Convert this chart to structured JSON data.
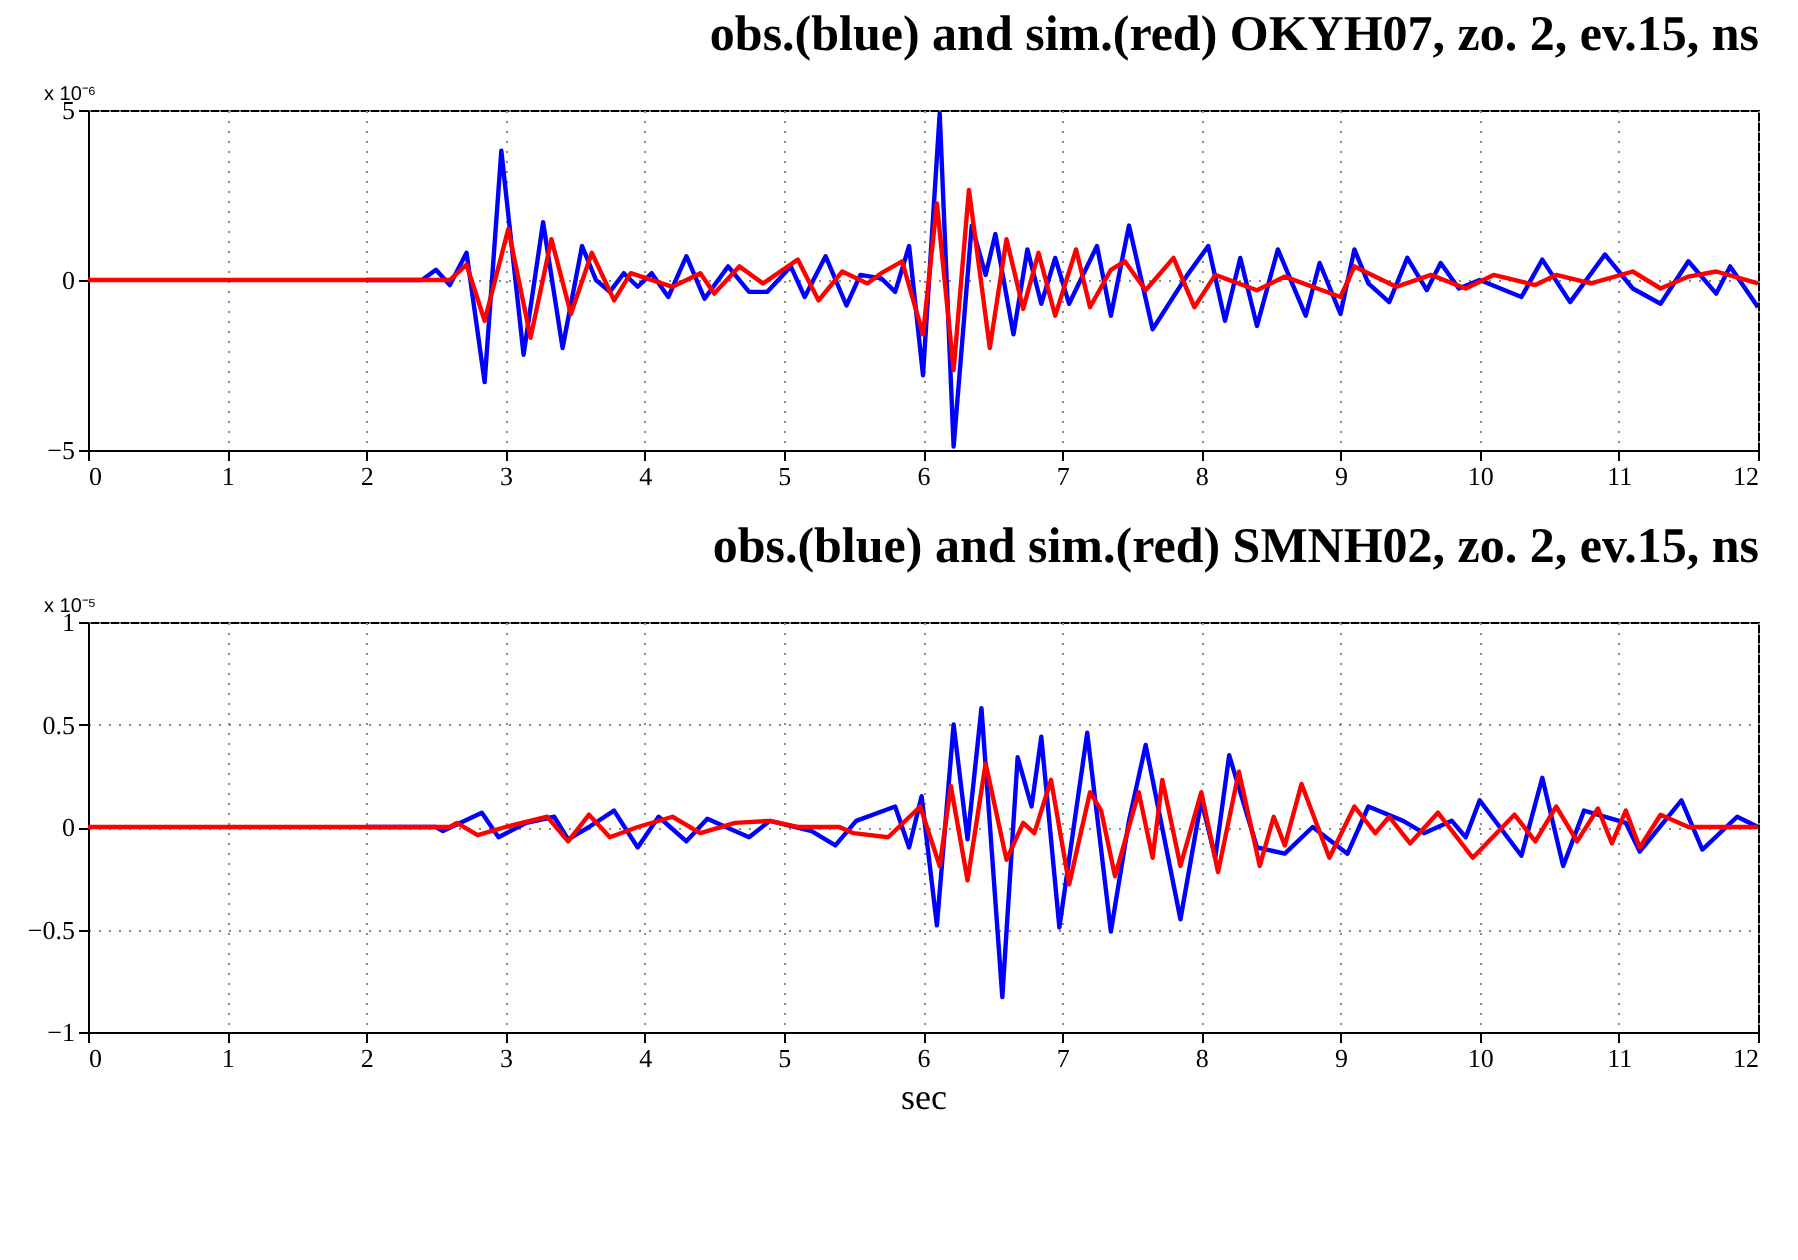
{
  "chart_data": [
    {
      "type": "line",
      "title": "obs.(blue) and sim.(red) OKYH07, zo. 2,  ev.15, ns",
      "annotations": [
        "x 10⁻⁶"
      ],
      "xlim": [
        0,
        12
      ],
      "xticks": [
        0,
        1,
        2,
        3,
        4,
        5,
        6,
        7,
        8,
        9,
        10,
        11,
        12
      ],
      "ylim": [
        -5,
        5
      ],
      "yticks": [
        -5,
        0,
        5
      ],
      "grid": true,
      "line_style": "solid",
      "series": [
        {
          "color": "#0000ff",
          "x": [
            2,
            2.4,
            2.5,
            2.6,
            2.72,
            2.85,
            2.97,
            3.13,
            3.27,
            3.41,
            3.55,
            3.65,
            3.75,
            3.85,
            3.95,
            4.05,
            4.17,
            4.3,
            4.43,
            4.6,
            4.75,
            4.88,
            5.05,
            5.15,
            5.3,
            5.45,
            5.55,
            5.7,
            5.8,
            5.9,
            6.0,
            6.12,
            6.22,
            6.35,
            6.45,
            6.52,
            6.65,
            6.75,
            6.85,
            6.95,
            7.05,
            7.25,
            7.35,
            7.48,
            7.65,
            7.9,
            8.05,
            8.17,
            8.28,
            8.4,
            8.55,
            8.75,
            8.85,
            9.0,
            9.1,
            9.2,
            9.35,
            9.48,
            9.62,
            9.72,
            9.85,
            10.0,
            10.3,
            10.45,
            10.65,
            10.9,
            11.1,
            11.3,
            11.5,
            11.7,
            11.8,
            12.0
          ],
          "values": [
            0,
            0,
            0.3,
            -0.15,
            0.8,
            -3.0,
            3.8,
            -2.2,
            1.7,
            -2.0,
            1.0,
            0,
            -0.35,
            0.2,
            -0.2,
            0.2,
            -0.5,
            0.7,
            -0.55,
            0.4,
            -0.35,
            -0.35,
            0.4,
            -0.5,
            0.7,
            -0.75,
            0.15,
            0.05,
            -0.35,
            1.0,
            -2.8,
            4.9,
            -4.9,
            1.6,
            0.15,
            1.35,
            -1.6,
            0.9,
            -0.7,
            0.65,
            -0.7,
            1.0,
            -1.05,
            1.6,
            -1.45,
            0.15,
            1.0,
            -1.2,
            0.65,
            -1.35,
            0.9,
            -1.05,
            0.5,
            -1.0,
            0.9,
            -0.1,
            -0.65,
            0.65,
            -0.3,
            0.5,
            -0.25,
            0,
            -0.5,
            0.6,
            -0.65,
            0.75,
            -0.25,
            -0.7,
            0.55,
            -0.4,
            0.4,
            -0.8
          ]
        },
        {
          "color": "#ff0000",
          "x": [
            0,
            1,
            2,
            2.6,
            2.72,
            2.85,
            3.02,
            3.18,
            3.33,
            3.47,
            3.62,
            3.78,
            3.9,
            4.2,
            4.4,
            4.5,
            4.68,
            4.85,
            5.1,
            5.25,
            5.42,
            5.6,
            5.7,
            5.85,
            6.0,
            6.1,
            6.22,
            6.33,
            6.48,
            6.6,
            6.72,
            6.83,
            6.95,
            7.1,
            7.2,
            7.35,
            7.45,
            7.6,
            7.8,
            7.95,
            8.1,
            8.4,
            8.6,
            9.0,
            9.1,
            9.4,
            9.65,
            9.9,
            10.1,
            10.4,
            10.55,
            10.8,
            11.1,
            11.3,
            11.5,
            11.7,
            12.0
          ],
          "values": [
            0,
            0,
            0,
            0,
            0.45,
            -1.2,
            1.5,
            -1.7,
            1.2,
            -1.0,
            0.8,
            -0.6,
            0.2,
            -0.2,
            0.2,
            -0.4,
            0.4,
            -0.1,
            0.6,
            -0.6,
            0.25,
            -0.1,
            0.2,
            0.55,
            -1.6,
            2.25,
            -2.65,
            2.65,
            -2.0,
            1.2,
            -0.85,
            0.8,
            -1.05,
            0.9,
            -0.8,
            0.3,
            0.55,
            -0.3,
            0.65,
            -0.8,
            0.15,
            -0.3,
            0.1,
            -0.5,
            0.4,
            -0.2,
            0.15,
            -0.25,
            0.15,
            -0.15,
            0.15,
            -0.1,
            0.25,
            -0.25,
            0.1,
            0.25,
            -0.1
          ]
        }
      ]
    },
    {
      "type": "line",
      "title": "obs.(blue) and sim.(red) SMNH02, zo. 2,  ev.15, ns",
      "xlabel": "sec",
      "annotations": [
        "x 10⁻⁵"
      ],
      "xlim": [
        0,
        12
      ],
      "xticks": [
        0,
        1,
        2,
        3,
        4,
        5,
        6,
        7,
        8,
        9,
        10,
        11,
        12
      ],
      "ylim": [
        -1,
        1
      ],
      "yticks": [
        -1,
        -0.5,
        0,
        0.5,
        1
      ],
      "grid": true,
      "line_style": "solid",
      "series": [
        {
          "color": "#0000ff",
          "x": [
            2,
            2.5,
            2.55,
            2.83,
            2.95,
            3.15,
            3.35,
            3.45,
            3.6,
            3.78,
            3.95,
            4.1,
            4.3,
            4.45,
            4.75,
            4.9,
            5.2,
            5.37,
            5.52,
            5.8,
            5.9,
            5.99,
            6.1,
            6.22,
            6.32,
            6.42,
            6.57,
            6.68,
            6.78,
            6.85,
            6.98,
            7.18,
            7.35,
            7.48,
            7.6,
            7.85,
            8.0,
            8.1,
            8.2,
            8.4,
            8.6,
            8.8,
            9.05,
            9.2,
            9.45,
            9.6,
            9.8,
            9.9,
            10.0,
            10.3,
            10.45,
            10.6,
            10.75,
            11.05,
            11.15,
            11.45,
            11.6,
            11.85,
            12.0
          ],
          "values": [
            0,
            0,
            -0.02,
            0.07,
            -0.05,
            0.02,
            0.05,
            -0.06,
            0,
            0.08,
            -0.1,
            0.05,
            -0.07,
            0.04,
            -0.05,
            0.03,
            -0.02,
            -0.09,
            0.03,
            0.1,
            -0.1,
            0.15,
            -0.48,
            0.5,
            -0.06,
            0.58,
            -0.83,
            0.34,
            0.1,
            0.44,
            -0.49,
            0.46,
            -0.51,
            0.03,
            0.4,
            -0.45,
            0.13,
            -0.15,
            0.35,
            -0.1,
            -0.13,
            0,
            -0.13,
            0.1,
            0.03,
            -0.03,
            0.03,
            -0.05,
            0.13,
            -0.14,
            0.24,
            -0.19,
            0.08,
            0.02,
            -0.12,
            0.13,
            -0.11,
            0.05,
            0
          ]
        },
        {
          "color": "#ff0000",
          "x": [
            0,
            1,
            2,
            2.6,
            2.65,
            2.8,
            3.0,
            3.3,
            3.45,
            3.6,
            3.75,
            3.95,
            4.2,
            4.4,
            4.65,
            4.9,
            5.1,
            5.4,
            5.5,
            5.75,
            5.98,
            6.12,
            6.2,
            6.32,
            6.45,
            6.6,
            6.72,
            6.8,
            6.92,
            7.05,
            7.2,
            7.28,
            7.38,
            7.55,
            7.65,
            7.72,
            7.85,
            8.0,
            8.12,
            8.27,
            8.42,
            8.52,
            8.6,
            8.72,
            8.92,
            9.1,
            9.25,
            9.35,
            9.5,
            9.7,
            9.95,
            10.25,
            10.4,
            10.55,
            10.7,
            10.85,
            10.95,
            11.05,
            11.15,
            11.3,
            11.5,
            11.7,
            11.85,
            12.0
          ],
          "values": [
            0,
            0,
            0,
            0,
            0.02,
            -0.04,
            0,
            0.05,
            -0.07,
            0.06,
            -0.05,
            0,
            0.05,
            -0.03,
            0.02,
            0.03,
            0,
            0,
            -0.03,
            -0.05,
            0.1,
            -0.19,
            0.2,
            -0.26,
            0.31,
            -0.16,
            0.02,
            -0.03,
            0.23,
            -0.28,
            0.17,
            0.08,
            -0.24,
            0.17,
            -0.15,
            0.23,
            -0.19,
            0.17,
            -0.22,
            0.27,
            -0.19,
            0.05,
            -0.09,
            0.21,
            -0.15,
            0.1,
            -0.03,
            0.05,
            -0.08,
            0.07,
            -0.15,
            0.06,
            -0.07,
            0.1,
            -0.07,
            0.09,
            -0.08,
            0.08,
            -0.1,
            0.06,
            0,
            0,
            0,
            0
          ]
        }
      ]
    }
  ]
}
